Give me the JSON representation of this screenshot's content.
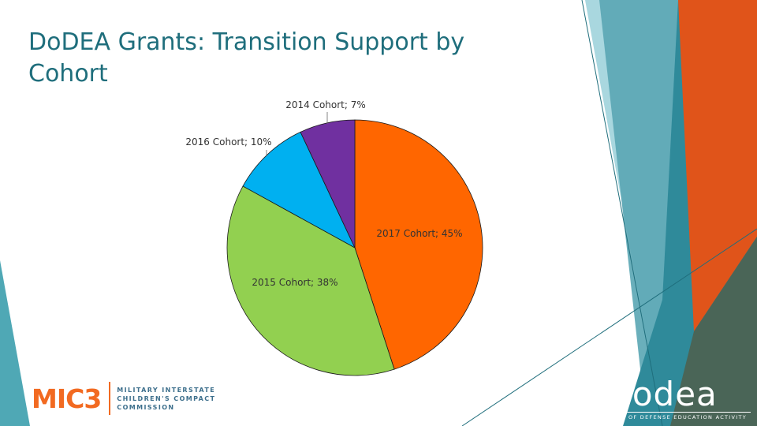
{
  "slide": {
    "title": "DoDEA Grants: Transition Support by Cohort"
  },
  "chart_data": {
    "type": "pie",
    "title": "",
    "slices": [
      {
        "label": "2017 Cohort",
        "value": 45,
        "display": "2017 Cohort; 45%",
        "color": "#ff6600"
      },
      {
        "label": "2015 Cohort",
        "value": 38,
        "display": "2015 Cohort; 38%",
        "color": "#92d050"
      },
      {
        "label": "2016 Cohort",
        "value": 10,
        "display": "2016 Cohort; 10%",
        "color": "#00b0f0"
      },
      {
        "label": "2014 Cohort",
        "value": 7,
        "display": "2014 Cohort; 7%",
        "color": "#7030a0"
      }
    ],
    "start_angle_deg": 0,
    "direction": "clockwise"
  },
  "logos": {
    "mic3": {
      "wordmark": "MIC3",
      "subtitle_lines": [
        "MILITARY INTERSTATE",
        "CHILDREN'S COMPACT",
        "COMMISSION"
      ],
      "color": "#f26a21"
    },
    "dodea": {
      "wordmark": "dodea",
      "subtitle": "DEPARTMENT OF DEFENSE EDUCATION ACTIVITY"
    }
  }
}
